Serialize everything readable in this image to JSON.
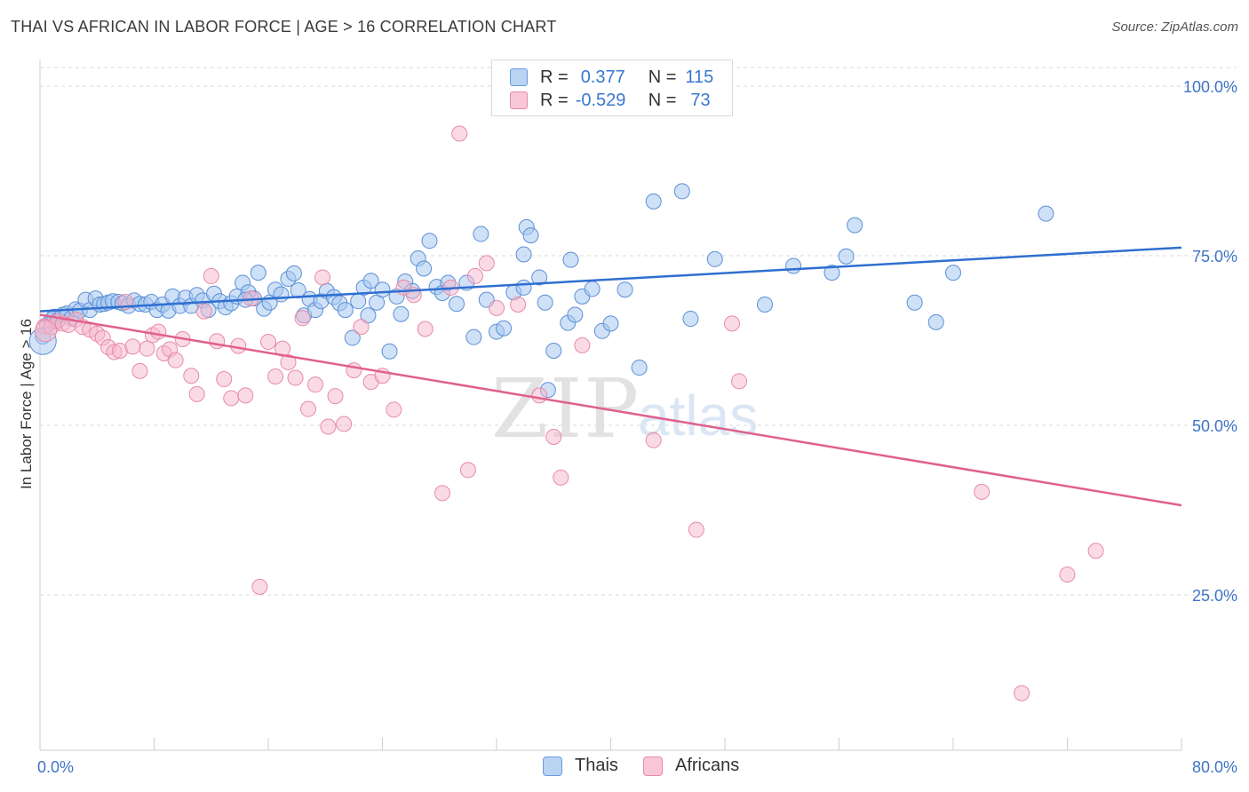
{
  "header": {
    "title": "THAI VS AFRICAN IN LABOR FORCE | AGE > 16 CORRELATION CHART",
    "source": "Source: ZipAtlas.com"
  },
  "legend": {
    "rows": [
      {
        "r_label": "R =",
        "r_value": "0.377",
        "n_label": "N =",
        "n_value": "115"
      },
      {
        "r_label": "R =",
        "r_value": "-0.529",
        "n_label": "N =",
        "n_value": "73"
      }
    ]
  },
  "bottom_legend": [
    "Thais",
    "Africans"
  ],
  "watermark": {
    "zip": "ZIP",
    "atlas": "atlas"
  },
  "colors": {
    "thai_fill": "#a8c8f0",
    "thai_stroke": "#5b8fd6",
    "thai_line": "#2f6fd0",
    "african_fill": "#f5b8cc",
    "african_stroke": "#e88aa8",
    "african_line": "#e0608c",
    "tick_label": "#3f73c8",
    "grid": "#d8d8d8"
  },
  "chart_data": {
    "type": "scatter",
    "title": "THAI VS AFRICAN IN LABOR FORCE | AGE > 16 CORRELATION CHART",
    "xlabel": "",
    "ylabel": "In Labor Force | Age > 16",
    "xlim": [
      0,
      80
    ],
    "ylim": [
      0,
      104
    ],
    "x_tick_labels": [
      "0.0%",
      "80.0%"
    ],
    "y_ticks": [
      25,
      50,
      75,
      100
    ],
    "y_tick_labels": [
      "25.0%",
      "50.0%",
      "75.0%",
      "100.0%"
    ],
    "grid": true,
    "series": [
      {
        "name": "Thais",
        "r": 0.377,
        "n": 115,
        "trend": {
          "x": [
            0,
            80
          ],
          "y": [
            66.8,
            76.2
          ]
        },
        "points": [
          [
            0.2,
            63.1
          ],
          [
            0.5,
            64.8
          ],
          [
            0.8,
            65.5
          ],
          [
            1.0,
            66.0
          ],
          [
            1.3,
            65.6
          ],
          [
            1.6,
            66.3
          ],
          [
            1.9,
            66.5
          ],
          [
            2.2,
            65.8
          ],
          [
            2.5,
            67.1
          ],
          [
            2.8,
            66.9
          ],
          [
            3.2,
            68.5
          ],
          [
            3.5,
            67.0
          ],
          [
            3.9,
            68.7
          ],
          [
            4.2,
            67.8
          ],
          [
            4.5,
            67.9
          ],
          [
            4.8,
            68.1
          ],
          [
            5.1,
            68.3
          ],
          [
            5.5,
            68.2
          ],
          [
            5.8,
            68.0
          ],
          [
            6.2,
            67.6
          ],
          [
            6.6,
            68.4
          ],
          [
            7.0,
            67.9
          ],
          [
            7.4,
            67.8
          ],
          [
            7.8,
            68.2
          ],
          [
            8.2,
            67.0
          ],
          [
            8.6,
            67.8
          ],
          [
            9.0,
            66.9
          ],
          [
            9.3,
            69.0
          ],
          [
            9.8,
            67.6
          ],
          [
            10.2,
            68.8
          ],
          [
            10.6,
            67.6
          ],
          [
            11.0,
            69.2
          ],
          [
            11.4,
            68.4
          ],
          [
            11.8,
            67.0
          ],
          [
            12.2,
            69.4
          ],
          [
            12.6,
            68.3
          ],
          [
            13.0,
            67.4
          ],
          [
            13.4,
            68.0
          ],
          [
            13.8,
            69.0
          ],
          [
            14.2,
            71.0
          ],
          [
            14.6,
            69.6
          ],
          [
            15.0,
            68.7
          ],
          [
            15.3,
            72.5
          ],
          [
            15.7,
            67.2
          ],
          [
            16.1,
            68.1
          ],
          [
            16.5,
            70.0
          ],
          [
            16.9,
            69.3
          ],
          [
            17.4,
            71.6
          ],
          [
            17.8,
            72.4
          ],
          [
            18.1,
            69.9
          ],
          [
            18.5,
            66.2
          ],
          [
            18.9,
            68.6
          ],
          [
            19.3,
            67.0
          ],
          [
            19.7,
            68.3
          ],
          [
            20.1,
            69.8
          ],
          [
            20.6,
            68.9
          ],
          [
            21.0,
            68.0
          ],
          [
            21.4,
            67.0
          ],
          [
            21.9,
            62.9
          ],
          [
            22.3,
            68.3
          ],
          [
            22.7,
            70.3
          ],
          [
            23.2,
            71.3
          ],
          [
            23.6,
            68.1
          ],
          [
            24.0,
            70.0
          ],
          [
            24.5,
            60.9
          ],
          [
            25.0,
            69.0
          ],
          [
            25.3,
            66.4
          ],
          [
            25.6,
            71.2
          ],
          [
            26.1,
            69.8
          ],
          [
            26.5,
            74.6
          ],
          [
            26.9,
            73.1
          ],
          [
            27.3,
            77.2
          ],
          [
            27.8,
            70.4
          ],
          [
            28.2,
            69.5
          ],
          [
            28.6,
            71.0
          ],
          [
            29.2,
            67.9
          ],
          [
            29.9,
            71.0
          ],
          [
            30.4,
            63.0
          ],
          [
            30.9,
            78.2
          ],
          [
            31.3,
            68.5
          ],
          [
            32.0,
            63.8
          ],
          [
            32.5,
            64.3
          ],
          [
            33.2,
            69.6
          ],
          [
            33.9,
            75.2
          ],
          [
            34.1,
            79.2
          ],
          [
            34.4,
            78.0
          ],
          [
            35.0,
            71.8
          ],
          [
            35.4,
            68.1
          ],
          [
            35.6,
            55.2
          ],
          [
            36.0,
            61.0
          ],
          [
            37.0,
            65.1
          ],
          [
            37.2,
            74.4
          ],
          [
            37.5,
            66.3
          ],
          [
            38.0,
            69.0
          ],
          [
            38.7,
            70.1
          ],
          [
            39.4,
            63.9
          ],
          [
            40.0,
            65.0
          ],
          [
            41.0,
            70.0
          ],
          [
            42.0,
            58.5
          ],
          [
            43.0,
            83.0
          ],
          [
            45.0,
            84.5
          ],
          [
            45.6,
            65.7
          ],
          [
            47.3,
            74.5
          ],
          [
            50.8,
            67.8
          ],
          [
            52.8,
            73.5
          ],
          [
            55.5,
            72.5
          ],
          [
            56.5,
            74.9
          ],
          [
            57.1,
            79.5
          ],
          [
            61.3,
            68.1
          ],
          [
            62.8,
            65.2
          ],
          [
            64.0,
            72.5
          ],
          [
            70.5,
            81.2
          ],
          [
            33.9,
            70.3
          ],
          [
            14.4,
            68.5
          ],
          [
            23.0,
            66.2
          ]
        ]
      },
      {
        "name": "Africans",
        "r": -0.529,
        "n": 73,
        "trend": {
          "x": [
            0,
            80
          ],
          "y": [
            66.3,
            38.2
          ]
        },
        "points": [
          [
            0.3,
            64.6
          ],
          [
            0.8,
            64.5
          ],
          [
            1.2,
            65.3
          ],
          [
            1.6,
            65.0
          ],
          [
            2.0,
            64.8
          ],
          [
            2.5,
            65.6
          ],
          [
            3.0,
            64.5
          ],
          [
            3.5,
            64.1
          ],
          [
            4.0,
            63.5
          ],
          [
            4.4,
            62.9
          ],
          [
            4.8,
            61.5
          ],
          [
            5.2,
            60.8
          ],
          [
            5.6,
            61.0
          ],
          [
            6.0,
            68.2
          ],
          [
            6.5,
            61.6
          ],
          [
            7.0,
            58.0
          ],
          [
            7.5,
            61.3
          ],
          [
            7.9,
            63.3
          ],
          [
            8.3,
            63.8
          ],
          [
            8.7,
            60.6
          ],
          [
            9.1,
            61.2
          ],
          [
            9.5,
            59.6
          ],
          [
            10.0,
            62.7
          ],
          [
            10.6,
            57.3
          ],
          [
            11.0,
            54.6
          ],
          [
            11.5,
            66.8
          ],
          [
            12.0,
            72.0
          ],
          [
            12.4,
            62.4
          ],
          [
            12.9,
            56.8
          ],
          [
            13.4,
            54.0
          ],
          [
            13.9,
            61.7
          ],
          [
            14.4,
            54.4
          ],
          [
            14.8,
            68.7
          ],
          [
            15.4,
            26.2
          ],
          [
            16.0,
            62.3
          ],
          [
            16.5,
            57.2
          ],
          [
            17.0,
            61.3
          ],
          [
            17.4,
            59.3
          ],
          [
            17.9,
            57.0
          ],
          [
            18.4,
            65.8
          ],
          [
            18.8,
            52.4
          ],
          [
            19.3,
            56.0
          ],
          [
            19.8,
            71.8
          ],
          [
            20.2,
            49.8
          ],
          [
            20.7,
            54.3
          ],
          [
            21.3,
            50.2
          ],
          [
            22.0,
            58.1
          ],
          [
            22.5,
            64.5
          ],
          [
            23.2,
            56.4
          ],
          [
            24.0,
            57.3
          ],
          [
            24.8,
            52.3
          ],
          [
            25.5,
            70.3
          ],
          [
            26.2,
            69.2
          ],
          [
            27.0,
            64.2
          ],
          [
            28.2,
            40.0
          ],
          [
            28.8,
            70.3
          ],
          [
            29.4,
            93.0
          ],
          [
            30.0,
            43.4
          ],
          [
            30.5,
            72.0
          ],
          [
            31.3,
            73.9
          ],
          [
            32.0,
            67.3
          ],
          [
            33.5,
            67.8
          ],
          [
            35.0,
            54.4
          ],
          [
            36.0,
            48.3
          ],
          [
            36.5,
            42.3
          ],
          [
            38.0,
            61.8
          ],
          [
            43.0,
            47.8
          ],
          [
            46.0,
            34.6
          ],
          [
            48.5,
            65.0
          ],
          [
            49.0,
            56.5
          ],
          [
            66.0,
            40.2
          ],
          [
            72.0,
            28.0
          ],
          [
            74.0,
            31.5
          ]
        ]
      }
    ],
    "extra_points_africans": [
      [
        68.8,
        10.5
      ]
    ]
  }
}
